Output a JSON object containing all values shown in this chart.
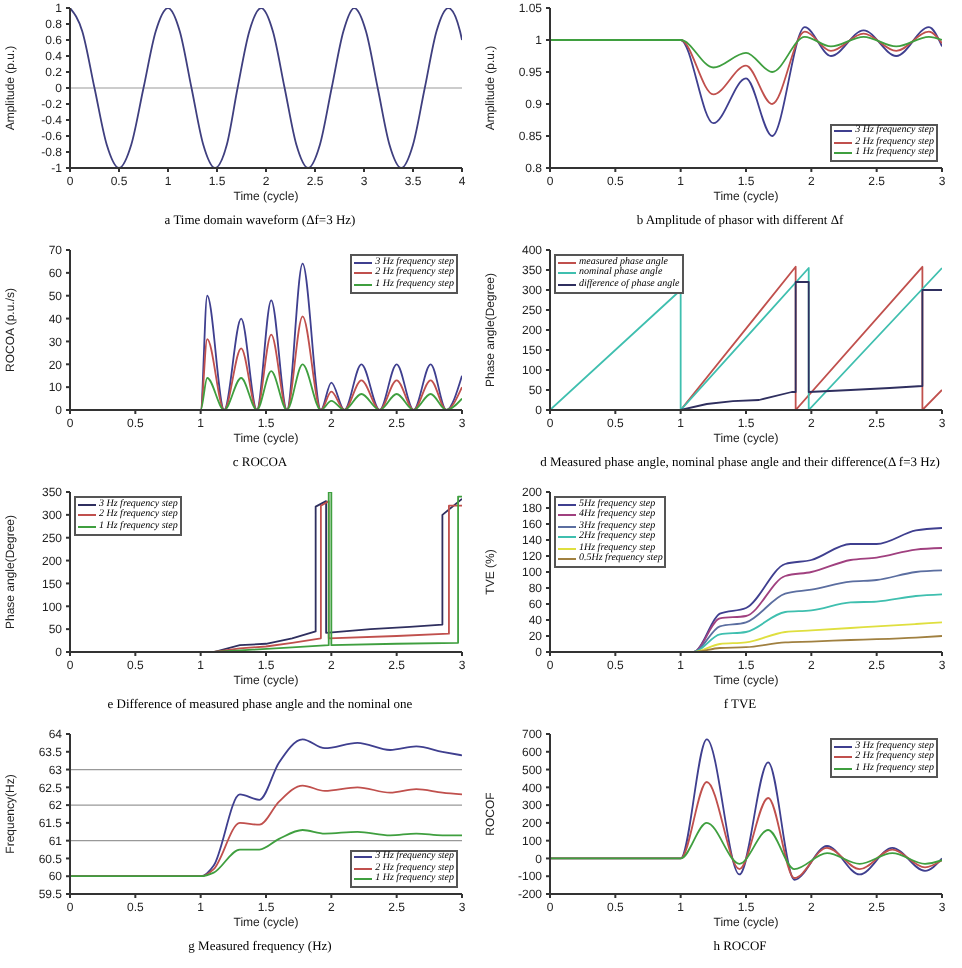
{
  "chart_data": [
    {
      "type": "line",
      "title": "a Time domain waveform (Δf=3 Hz)",
      "xlabel": "Time (cycle)",
      "ylabel": "Amplitude (p.u.)",
      "xlim": [
        0,
        4
      ],
      "xticks": [
        0,
        0.5,
        1,
        1.5,
        2,
        2.5,
        3,
        3.5,
        4
      ],
      "ylim": [
        -1,
        1
      ],
      "yticks": [
        -1,
        -0.8,
        -0.6,
        -0.4,
        -0.2,
        0,
        0.2,
        0.4,
        0.6,
        0.8,
        1
      ],
      "ref_lines": [
        {
          "axis": "y",
          "value": 0,
          "color": "#999999"
        }
      ],
      "x": [
        0,
        0.125,
        0.25,
        0.375,
        0.5,
        0.625,
        0.75,
        0.875,
        1,
        1.12,
        1.24,
        1.36,
        1.48,
        1.6,
        1.71,
        1.83,
        1.95,
        2.07,
        2.19,
        2.31,
        2.43,
        2.55,
        2.67,
        2.79,
        2.9,
        3.02,
        3.14,
        3.26,
        3.38,
        3.5,
        3.62,
        3.74,
        3.86,
        3.98,
        4
      ],
      "series": [
        {
          "color": "#3f3f7f",
          "values": [
            1,
            0.71,
            0,
            -0.71,
            -1,
            -0.71,
            0,
            0.71,
            1,
            0.71,
            0,
            -0.71,
            -1,
            -0.71,
            0,
            0.71,
            1,
            0.71,
            0,
            -0.71,
            -1,
            -0.71,
            0,
            0.71,
            1,
            0.71,
            0,
            -0.71,
            -1,
            -0.71,
            0,
            0.71,
            1,
            0.71,
            0.6
          ]
        }
      ]
    },
    {
      "type": "line",
      "title": "b Amplitude of phasor with different Δf",
      "xlabel": "Time (cycle)",
      "ylabel": "Amplitude (p.u.)",
      "xlim": [
        0,
        3
      ],
      "xticks": [
        0,
        0.5,
        1,
        1.5,
        2,
        2.5,
        3
      ],
      "ylim": [
        0.8,
        1.05
      ],
      "yticks": [
        0.8,
        0.85,
        0.9,
        0.95,
        1,
        1.05
      ],
      "legend": "bottom right",
      "x": [
        0,
        1,
        1.25,
        1.5,
        1.7,
        1.95,
        2.15,
        2.4,
        2.65,
        2.9,
        3
      ],
      "series": [
        {
          "name": "3 Hz frequency step",
          "color": "#3f3f8f",
          "values": [
            1,
            1,
            0.87,
            0.94,
            0.85,
            1.02,
            0.975,
            1.015,
            0.975,
            1.02,
            0.99
          ]
        },
        {
          "name": "2 Hz frequency step",
          "color": "#c0504d",
          "values": [
            1,
            1,
            0.915,
            0.96,
            0.9,
            1.013,
            0.983,
            1.01,
            0.983,
            1.013,
            0.995
          ]
        },
        {
          "name": "1 Hz frequency step",
          "color": "#3f9f3f",
          "values": [
            1,
            1,
            0.957,
            0.98,
            0.95,
            1.005,
            0.99,
            1.005,
            0.99,
            1.005,
            1
          ]
        }
      ]
    },
    {
      "type": "line",
      "title": "c ROCOA",
      "xlabel": "Time (cycle)",
      "ylabel": "ROCOA (p.u./s)",
      "xlim": [
        0,
        3
      ],
      "xticks": [
        0,
        0.5,
        1,
        1.5,
        2,
        2.5,
        3
      ],
      "ylim": [
        0,
        70
      ],
      "yticks": [
        0,
        10,
        20,
        30,
        40,
        50,
        60,
        70
      ],
      "legend": "top right",
      "x": [
        0,
        1,
        1.05,
        1.18,
        1.31,
        1.43,
        1.54,
        1.66,
        1.78,
        1.92,
        2,
        2.1,
        2.23,
        2.37,
        2.5,
        2.63,
        2.76,
        2.88,
        3
      ],
      "series": [
        {
          "name": "3 Hz frequency step",
          "color": "#3f3f8f",
          "values": [
            0,
            0,
            50,
            0,
            40,
            0,
            48,
            0,
            64,
            0,
            12,
            0,
            20,
            0,
            20,
            0,
            20,
            0,
            15
          ]
        },
        {
          "name": "2 Hz frequency step",
          "color": "#c0504d",
          "values": [
            0,
            0,
            31,
            0,
            27,
            0,
            33,
            0,
            41,
            0,
            8,
            0,
            13,
            0,
            13,
            0,
            13,
            0,
            10
          ]
        },
        {
          "name": "1 Hz frequency step",
          "color": "#3f9f3f",
          "values": [
            0,
            0,
            14,
            0,
            14,
            0,
            17,
            0,
            20,
            0,
            4,
            0,
            7,
            0,
            7,
            0,
            7,
            0,
            5
          ]
        }
      ]
    },
    {
      "type": "line",
      "title": "d Measured phase angle, nominal phase angle and their difference(Δ f=3 Hz)",
      "xlabel": "Time (cycle)",
      "ylabel": "Phase angle(Degree)",
      "xlim": [
        0,
        3
      ],
      "xticks": [
        0,
        0.5,
        1,
        1.5,
        2,
        2.5,
        3
      ],
      "ylim": [
        0,
        400
      ],
      "yticks": [
        0,
        50,
        100,
        150,
        200,
        250,
        300,
        350,
        400
      ],
      "legend": "top left",
      "series": [
        {
          "name": "measured phase angle",
          "color": "#c0504d",
          "x": [
            1,
            1.88,
            1.88,
            2.85,
            2.85,
            3
          ],
          "values": [
            0,
            358,
            0,
            358,
            0,
            50
          ]
        },
        {
          "name": "nominal phase angle",
          "color": "#3fbfaf",
          "x": [
            0,
            1,
            1,
            1.98,
            1.98,
            3
          ],
          "values": [
            0,
            300,
            0,
            355,
            0,
            355
          ]
        },
        {
          "name": "difference of phase angle",
          "color": "#2f2f5f",
          "x": [
            0,
            1,
            1.2,
            1.4,
            1.6,
            1.85,
            1.88,
            1.88,
            1.98,
            1.98,
            2.3,
            2.6,
            2.85,
            2.85,
            3
          ],
          "values": [
            0,
            0,
            15,
            22,
            25,
            45,
            45,
            320,
            320,
            45,
            50,
            55,
            60,
            300,
            300
          ]
        }
      ]
    },
    {
      "type": "line",
      "title": "e Difference of measured phase angle and the nominal one",
      "xlabel": "Time (cycle)",
      "ylabel": "Phase angle(Degree)",
      "xlim": [
        0,
        3
      ],
      "xticks": [
        0,
        0.5,
        1,
        1.5,
        2,
        2.5,
        3
      ],
      "ylim": [
        0,
        350
      ],
      "yticks": [
        0,
        50,
        100,
        150,
        200,
        250,
        300,
        350
      ],
      "legend": "top left",
      "series": [
        {
          "name": "3 Hz frequency step",
          "color": "#2f2f5f",
          "x": [
            0,
            1.1,
            1.3,
            1.5,
            1.7,
            1.88,
            1.88,
            1.96,
            1.96,
            2.3,
            2.6,
            2.85,
            2.85,
            3
          ],
          "values": [
            0,
            0,
            15,
            18,
            30,
            45,
            318,
            330,
            42,
            50,
            55,
            60,
            300,
            335
          ]
        },
        {
          "name": "2 Hz frequency step",
          "color": "#c0504d",
          "x": [
            0,
            1.1,
            1.3,
            1.5,
            1.7,
            1.92,
            1.92,
            1.98,
            1.98,
            2.5,
            2.9,
            2.9,
            3
          ],
          "values": [
            0,
            0,
            8,
            12,
            20,
            30,
            320,
            330,
            30,
            35,
            40,
            320,
            320
          ]
        },
        {
          "name": "1 Hz frequency step",
          "color": "#3f9f3f",
          "x": [
            0,
            1.1,
            1.4,
            1.7,
            1.98,
            1.98,
            2,
            2,
            2.5,
            2.97,
            2.97,
            3
          ],
          "values": [
            0,
            0,
            5,
            10,
            15,
            350,
            350,
            15,
            18,
            20,
            340,
            340
          ]
        }
      ]
    },
    {
      "type": "line",
      "title": "f TVE",
      "xlabel": "Time (cycle)",
      "ylabel": "TVE (%)",
      "xlim": [
        0,
        3
      ],
      "xticks": [
        0,
        0.5,
        1,
        1.5,
        2,
        2.5,
        3
      ],
      "ylim": [
        0,
        200
      ],
      "yticks": [
        0,
        20,
        40,
        60,
        80,
        100,
        120,
        140,
        160,
        180,
        200
      ],
      "legend": "top left",
      "x": [
        0,
        1.1,
        1.3,
        1.5,
        1.8,
        2,
        2.3,
        2.5,
        2.8,
        3
      ],
      "series": [
        {
          "name": "5Hz frequency step",
          "color": "#3f3f8f",
          "values": [
            0,
            0,
            48,
            55,
            110,
            115,
            135,
            135,
            152,
            155
          ]
        },
        {
          "name": "4Hz frequency step",
          "color": "#a0407f",
          "values": [
            0,
            0,
            42,
            45,
            95,
            100,
            115,
            118,
            128,
            130
          ]
        },
        {
          "name": "3Hz frequency step",
          "color": "#5b6ea0",
          "values": [
            0,
            0,
            32,
            37,
            73,
            78,
            88,
            90,
            100,
            102
          ]
        },
        {
          "name": "2Hz frequency step",
          "color": "#3fbfaf",
          "values": [
            0,
            0,
            22,
            25,
            50,
            52,
            62,
            63,
            70,
            72
          ]
        },
        {
          "name": "1Hz frequency step",
          "color": "#dfdf3f",
          "values": [
            0,
            0,
            10,
            12,
            25,
            27,
            30,
            32,
            35,
            37
          ]
        },
        {
          "name": "0.5Hz frequency step",
          "color": "#a08040",
          "values": [
            0,
            0,
            5,
            6,
            12,
            13,
            15,
            16,
            18,
            20
          ]
        }
      ]
    },
    {
      "type": "line",
      "title": "g Measured frequency (Hz)",
      "xlabel": "Time (cycle)",
      "ylabel": "Frequency(Hz)",
      "xlim": [
        0,
        3
      ],
      "xticks": [
        0,
        0.5,
        1,
        1.5,
        2,
        2.5,
        3
      ],
      "ylim": [
        59.5,
        64
      ],
      "yticks": [
        59.5,
        60,
        60.5,
        61,
        61.5,
        62,
        62.5,
        63,
        63.5,
        64
      ],
      "legend": "bottom right",
      "ref_lines": [
        {
          "axis": "y",
          "value": 61,
          "color": "#999999"
        },
        {
          "axis": "y",
          "value": 62,
          "color": "#999999"
        },
        {
          "axis": "y",
          "value": 63,
          "color": "#999999"
        }
      ],
      "x": [
        0,
        1,
        1.1,
        1.3,
        1.45,
        1.6,
        1.78,
        1.95,
        2.2,
        2.45,
        2.65,
        2.85,
        3
      ],
      "series": [
        {
          "name": "3 Hz frequency step",
          "color": "#3f3f8f",
          "values": [
            60,
            60,
            60.3,
            62.3,
            62.15,
            63.2,
            63.85,
            63.6,
            63.75,
            63.55,
            63.65,
            63.5,
            63.4
          ]
        },
        {
          "name": "2 Hz frequency step",
          "color": "#c0504d",
          "values": [
            60,
            60,
            60.2,
            61.5,
            61.45,
            62.1,
            62.55,
            62.4,
            62.5,
            62.35,
            62.45,
            62.35,
            62.3
          ]
        },
        {
          "name": "1 Hz frequency step",
          "color": "#3f9f3f",
          "values": [
            60,
            60,
            60.1,
            60.75,
            60.75,
            61.05,
            61.3,
            61.2,
            61.25,
            61.15,
            61.2,
            61.15,
            61.15
          ]
        }
      ]
    },
    {
      "type": "line",
      "title": "h ROCOF",
      "xlabel": "Time (cycle)",
      "ylabel": "ROCOF",
      "xlim": [
        0,
        3
      ],
      "xticks": [
        0,
        0.5,
        1,
        1.5,
        2,
        2.5,
        3
      ],
      "ylim": [
        -200,
        700
      ],
      "yticks": [
        -200,
        -100,
        0,
        100,
        200,
        300,
        400,
        500,
        600,
        700
      ],
      "legend": "top right",
      "x": [
        0,
        1,
        1.2,
        1.45,
        1.67,
        1.87,
        2.12,
        2.37,
        2.62,
        2.87,
        3
      ],
      "series": [
        {
          "name": "3 Hz frequency step",
          "color": "#3f3f8f",
          "values": [
            0,
            0,
            670,
            -90,
            540,
            -120,
            70,
            -90,
            60,
            -70,
            0
          ]
        },
        {
          "name": "2 Hz frequency step",
          "color": "#c0504d",
          "values": [
            0,
            0,
            430,
            -60,
            340,
            -110,
            60,
            -60,
            50,
            -50,
            -10
          ]
        },
        {
          "name": "1 Hz frequency step",
          "color": "#3f9f3f",
          "values": [
            0,
            0,
            200,
            -30,
            160,
            -60,
            30,
            -30,
            30,
            -30,
            -10
          ]
        }
      ]
    }
  ]
}
